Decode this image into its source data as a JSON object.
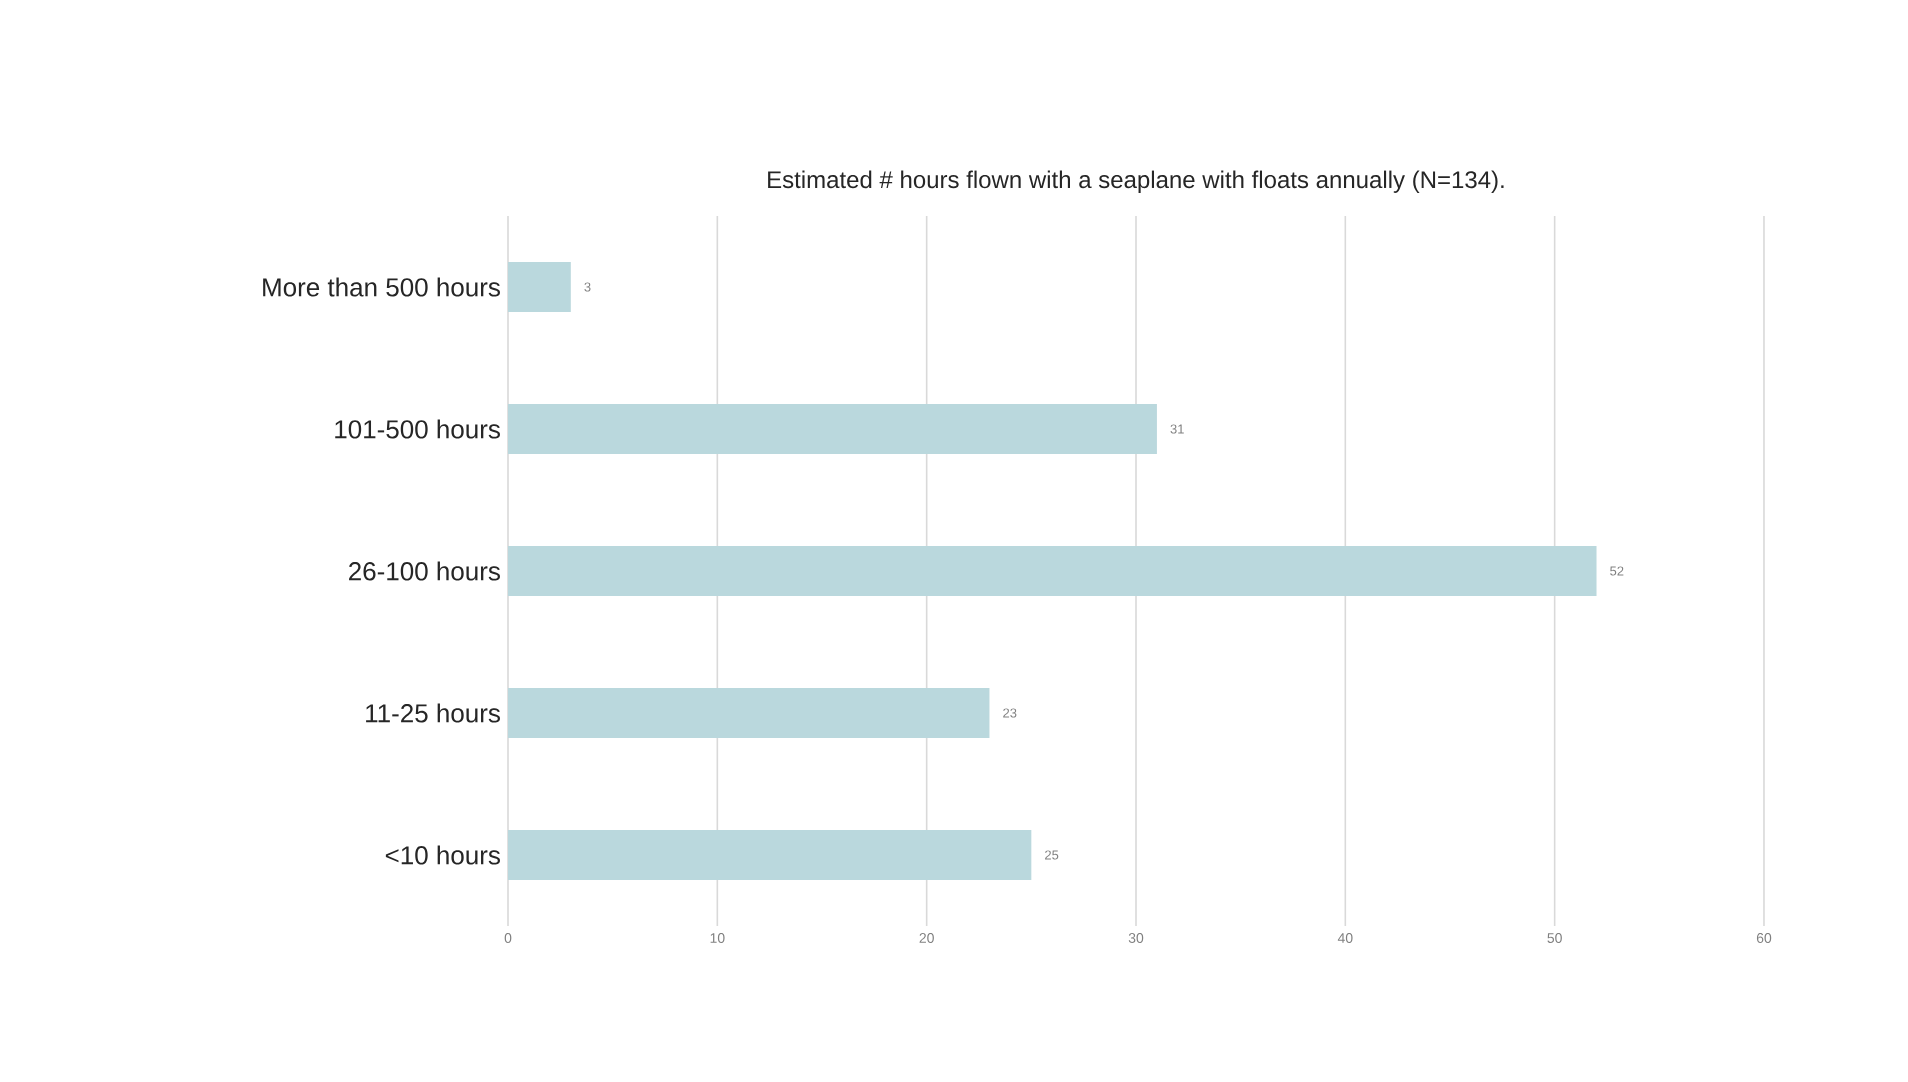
{
  "chart_data": {
    "type": "bar",
    "orientation": "horizontal",
    "title": "Estimated # hours flown with a seaplane with floats annually (N=134).",
    "categories": [
      "More than 500 hours",
      "101-500 hours",
      "26-100 hours",
      "11-25 hours",
      "<10 hours"
    ],
    "values": [
      3,
      31,
      52,
      23,
      25
    ],
    "color": "#bad8dd",
    "data_labels": true,
    "xlim": [
      0,
      60
    ],
    "xticks": [
      0,
      10,
      20,
      30,
      40,
      50,
      60
    ],
    "grid": "x"
  }
}
